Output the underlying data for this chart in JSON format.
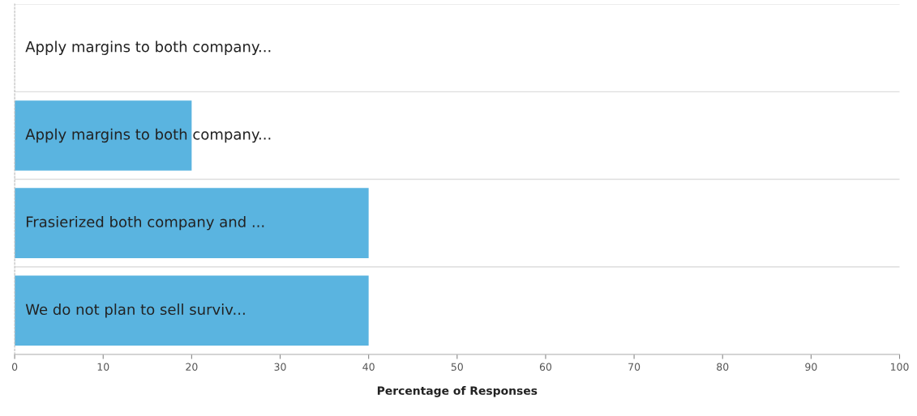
{
  "chart_data": {
    "type": "bar",
    "orientation": "horizontal",
    "xlabel": "Percentage of Responses",
    "categories": [
      "Apply margins to both company...",
      "Apply margins to both company...",
      "Frasierized both company and ...",
      "We do not plan to sell surviv..."
    ],
    "values": [
      0,
      20,
      40,
      40
    ],
    "color": "#5ab4e0",
    "xlim": [
      0,
      100
    ],
    "xticks": [
      0,
      10,
      20,
      30,
      40,
      50,
      60,
      70,
      80,
      90,
      100
    ],
    "grid": "y",
    "legend": false
  }
}
